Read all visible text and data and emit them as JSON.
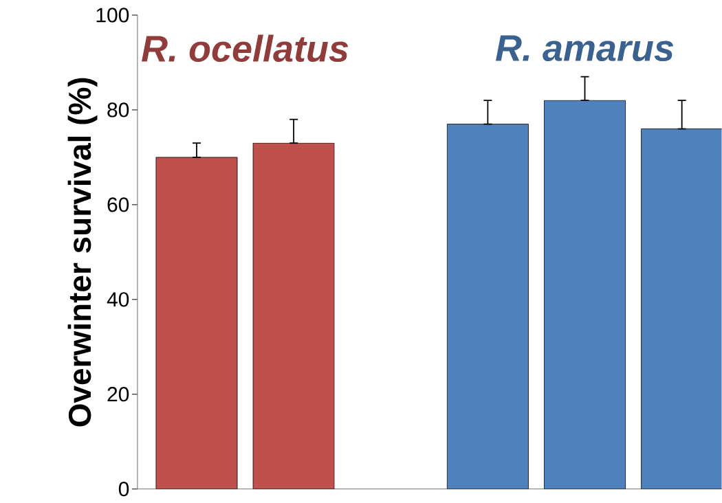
{
  "chart_data": {
    "type": "bar",
    "categories": [
      null,
      null,
      null,
      null,
      null,
      null
    ],
    "ylabel": "Overwinter survival (%)",
    "ylim": [
      0,
      100
    ],
    "yticks": [
      0,
      20,
      40,
      60,
      80,
      100
    ],
    "tick_labels": "y",
    "series": [
      {
        "name": "*R. ocellatus*",
        "color": "#c0504d",
        "values": [
          70,
          73,
          null,
          null,
          null,
          null
        ],
        "errors": [
          [
            70,
            73
          ],
          [
            73,
            78
          ],
          null,
          null,
          null,
          null
        ]
      },
      {
        "name": "*R. amarus*",
        "color": "#4f81bd",
        "values": [
          null,
          null,
          null,
          77,
          82,
          76
        ],
        "errors": [
          null,
          null,
          null,
          [
            77,
            82
          ],
          [
            82,
            87
          ],
          [
            76,
            82
          ]
        ]
      }
    ]
  }
}
